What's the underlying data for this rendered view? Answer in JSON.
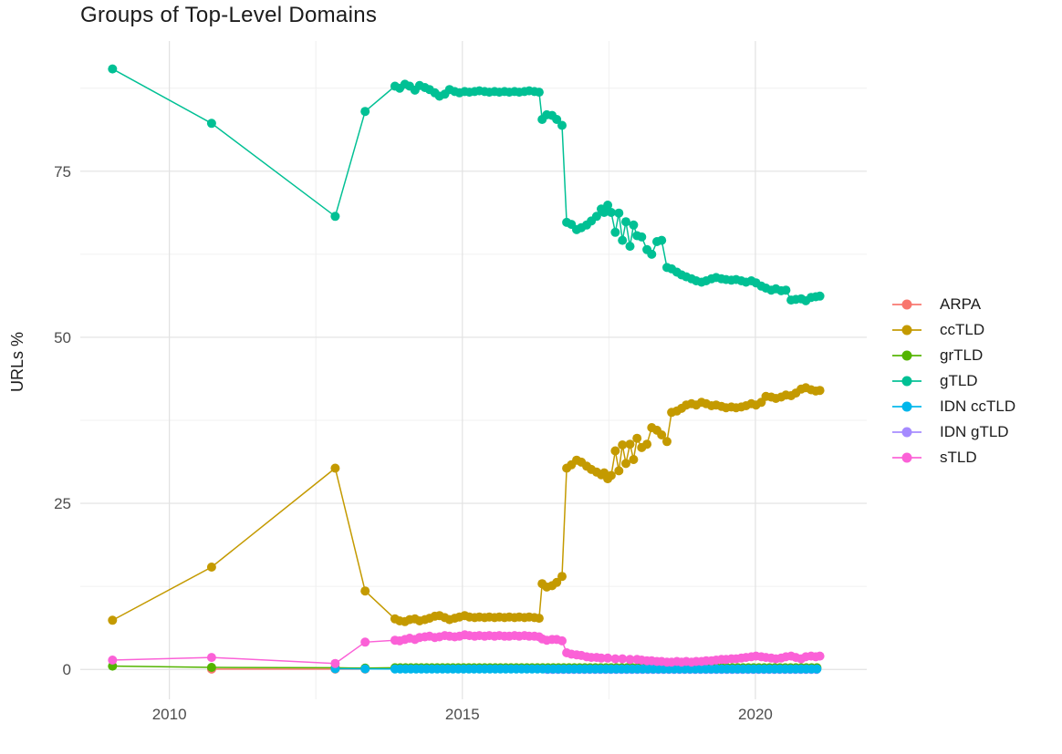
{
  "chart_data": {
    "type": "line",
    "title": "Groups of Top-Level Domains",
    "xlabel": "",
    "ylabel": "URLs %",
    "xlim": [
      2008.48,
      2021.9
    ],
    "ylim": [
      -4.5,
      94.6
    ],
    "x_ticks": [
      2010,
      2015,
      2020
    ],
    "y_ticks": [
      0,
      25,
      50,
      75
    ],
    "x_minor": [
      2012.5,
      2017.5
    ],
    "y_minor": [
      12.5,
      37.5,
      62.5,
      87.5
    ],
    "grid": true,
    "legend_position": "right",
    "draw_order": [
      "ARPA",
      "IDN gTLD",
      "grTLD",
      "IDN ccTLD",
      "gTLD",
      "ccTLD",
      "sTLD"
    ],
    "series": [
      {
        "name": "ARPA",
        "color": "#F8766D",
        "points": [
          [
            2010.72,
            0.05
          ],
          [
            2012.83,
            0.05
          ],
          [
            2013.34,
            0.05
          ]
        ]
      },
      {
        "name": "ccTLD",
        "color": "#C49A00",
        "points": [
          [
            2009.03,
            7.4
          ],
          [
            2010.72,
            15.4
          ],
          [
            2012.83,
            30.3
          ],
          [
            2013.34,
            11.8
          ],
          [
            2013.85,
            7.6
          ],
          [
            2013.93,
            7.3
          ],
          [
            2014.02,
            7.2
          ],
          [
            2014.1,
            7.5
          ],
          [
            2014.19,
            7.6
          ],
          [
            2014.27,
            7.3
          ],
          [
            2014.36,
            7.5
          ],
          [
            2014.44,
            7.7
          ],
          [
            2014.53,
            8.0
          ],
          [
            2014.61,
            8.1
          ],
          [
            2014.7,
            7.8
          ],
          [
            2014.78,
            7.5
          ],
          [
            2014.87,
            7.7
          ],
          [
            2014.95,
            7.9
          ],
          [
            2015.04,
            8.1
          ],
          [
            2015.12,
            7.9
          ],
          [
            2015.21,
            7.8
          ],
          [
            2015.29,
            7.9
          ],
          [
            2015.38,
            7.8
          ],
          [
            2015.46,
            7.9
          ],
          [
            2015.55,
            7.8
          ],
          [
            2015.63,
            7.9
          ],
          [
            2015.72,
            7.8
          ],
          [
            2015.8,
            7.9
          ],
          [
            2015.89,
            7.8
          ],
          [
            2015.97,
            7.9
          ],
          [
            2016.06,
            7.8
          ],
          [
            2016.14,
            7.9
          ],
          [
            2016.23,
            7.8
          ],
          [
            2016.31,
            7.7
          ],
          [
            2016.36,
            12.9
          ],
          [
            2016.44,
            12.4
          ],
          [
            2016.53,
            12.6
          ],
          [
            2016.61,
            13.1
          ],
          [
            2016.7,
            14.0
          ],
          [
            2016.78,
            30.3
          ],
          [
            2016.86,
            30.8
          ],
          [
            2016.95,
            31.5
          ],
          [
            2017.03,
            31.2
          ],
          [
            2017.12,
            30.6
          ],
          [
            2017.2,
            30.1
          ],
          [
            2017.29,
            29.7
          ],
          [
            2017.37,
            29.3
          ],
          [
            2017.42,
            29.6
          ],
          [
            2017.48,
            28.7
          ],
          [
            2017.54,
            29.2
          ],
          [
            2017.61,
            32.9
          ],
          [
            2017.67,
            29.9
          ],
          [
            2017.73,
            33.8
          ],
          [
            2017.79,
            31.0
          ],
          [
            2017.86,
            33.9
          ],
          [
            2017.92,
            31.6
          ],
          [
            2017.98,
            34.8
          ],
          [
            2018.06,
            33.4
          ],
          [
            2018.15,
            33.9
          ],
          [
            2018.23,
            36.4
          ],
          [
            2018.32,
            36.0
          ],
          [
            2018.4,
            35.3
          ],
          [
            2018.49,
            34.3
          ],
          [
            2018.57,
            38.7
          ],
          [
            2018.66,
            38.9
          ],
          [
            2018.74,
            39.3
          ],
          [
            2018.82,
            39.8
          ],
          [
            2018.91,
            40.0
          ],
          [
            2018.99,
            39.8
          ],
          [
            2019.08,
            40.2
          ],
          [
            2019.16,
            40.0
          ],
          [
            2019.25,
            39.7
          ],
          [
            2019.33,
            39.8
          ],
          [
            2019.42,
            39.6
          ],
          [
            2019.5,
            39.4
          ],
          [
            2019.59,
            39.5
          ],
          [
            2019.67,
            39.4
          ],
          [
            2019.76,
            39.5
          ],
          [
            2019.84,
            39.7
          ],
          [
            2019.93,
            40.0
          ],
          [
            2020.01,
            39.8
          ],
          [
            2020.1,
            40.2
          ],
          [
            2020.18,
            41.1
          ],
          [
            2020.27,
            41.0
          ],
          [
            2020.35,
            40.8
          ],
          [
            2020.44,
            41.0
          ],
          [
            2020.52,
            41.3
          ],
          [
            2020.61,
            41.2
          ],
          [
            2020.69,
            41.6
          ],
          [
            2020.78,
            42.2
          ],
          [
            2020.86,
            42.4
          ],
          [
            2020.95,
            42.1
          ],
          [
            2021.03,
            41.9
          ],
          [
            2021.1,
            42.0
          ]
        ]
      },
      {
        "name": "grTLD",
        "color": "#53B400",
        "points": [
          [
            2009.03,
            0.5
          ],
          [
            2010.72,
            0.3
          ],
          [
            2012.83,
            0.25
          ],
          [
            2013.34,
            0.2
          ]
        ],
        "span": {
          "from": 2013.85,
          "to": 2021.1,
          "step": 0.09,
          "value": 0.25
        }
      },
      {
        "name": "gTLD",
        "color": "#00C094",
        "points": [
          [
            2009.03,
            90.4
          ],
          [
            2010.72,
            82.2
          ],
          [
            2012.83,
            68.2
          ],
          [
            2013.34,
            84.0
          ],
          [
            2013.85,
            87.8
          ],
          [
            2013.93,
            87.5
          ],
          [
            2014.02,
            88.1
          ],
          [
            2014.1,
            87.8
          ],
          [
            2014.19,
            87.2
          ],
          [
            2014.27,
            87.9
          ],
          [
            2014.36,
            87.6
          ],
          [
            2014.44,
            87.3
          ],
          [
            2014.53,
            86.8
          ],
          [
            2014.61,
            86.3
          ],
          [
            2014.7,
            86.6
          ],
          [
            2014.78,
            87.3
          ],
          [
            2014.87,
            87.0
          ],
          [
            2014.95,
            86.8
          ],
          [
            2015.04,
            87.0
          ],
          [
            2015.12,
            86.9
          ],
          [
            2015.21,
            87.0
          ],
          [
            2015.29,
            87.1
          ],
          [
            2015.38,
            87.0
          ],
          [
            2015.46,
            86.9
          ],
          [
            2015.55,
            87.0
          ],
          [
            2015.63,
            86.9
          ],
          [
            2015.72,
            87.0
          ],
          [
            2015.8,
            86.9
          ],
          [
            2015.89,
            87.0
          ],
          [
            2015.97,
            86.9
          ],
          [
            2016.06,
            87.0
          ],
          [
            2016.14,
            87.1
          ],
          [
            2016.23,
            87.0
          ],
          [
            2016.31,
            86.9
          ],
          [
            2016.36,
            82.8
          ],
          [
            2016.44,
            83.5
          ],
          [
            2016.53,
            83.4
          ],
          [
            2016.61,
            82.8
          ],
          [
            2016.7,
            81.9
          ],
          [
            2016.78,
            67.3
          ],
          [
            2016.86,
            67.0
          ],
          [
            2016.95,
            66.2
          ],
          [
            2017.03,
            66.5
          ],
          [
            2017.12,
            66.9
          ],
          [
            2017.2,
            67.5
          ],
          [
            2017.29,
            68.2
          ],
          [
            2017.37,
            69.3
          ],
          [
            2017.42,
            68.8
          ],
          [
            2017.48,
            69.9
          ],
          [
            2017.54,
            68.8
          ],
          [
            2017.61,
            65.8
          ],
          [
            2017.67,
            68.7
          ],
          [
            2017.73,
            64.6
          ],
          [
            2017.79,
            67.4
          ],
          [
            2017.86,
            63.7
          ],
          [
            2017.92,
            66.9
          ],
          [
            2017.98,
            65.3
          ],
          [
            2018.06,
            65.1
          ],
          [
            2018.15,
            63.2
          ],
          [
            2018.23,
            62.5
          ],
          [
            2018.32,
            64.4
          ],
          [
            2018.4,
            64.6
          ],
          [
            2018.49,
            60.5
          ],
          [
            2018.57,
            60.3
          ],
          [
            2018.66,
            59.8
          ],
          [
            2018.74,
            59.4
          ],
          [
            2018.82,
            59.1
          ],
          [
            2018.91,
            58.8
          ],
          [
            2018.99,
            58.5
          ],
          [
            2019.08,
            58.3
          ],
          [
            2019.16,
            58.5
          ],
          [
            2019.25,
            58.8
          ],
          [
            2019.33,
            59.0
          ],
          [
            2019.42,
            58.8
          ],
          [
            2019.5,
            58.7
          ],
          [
            2019.59,
            58.6
          ],
          [
            2019.67,
            58.7
          ],
          [
            2019.76,
            58.5
          ],
          [
            2019.84,
            58.3
          ],
          [
            2019.93,
            58.5
          ],
          [
            2020.01,
            58.2
          ],
          [
            2020.1,
            57.7
          ],
          [
            2020.18,
            57.4
          ],
          [
            2020.27,
            57.1
          ],
          [
            2020.35,
            57.3
          ],
          [
            2020.44,
            57.0
          ],
          [
            2020.52,
            57.1
          ],
          [
            2020.61,
            55.6
          ],
          [
            2020.69,
            55.7
          ],
          [
            2020.78,
            55.8
          ],
          [
            2020.86,
            55.5
          ],
          [
            2020.95,
            56.0
          ],
          [
            2021.03,
            56.1
          ],
          [
            2021.1,
            56.2
          ]
        ]
      },
      {
        "name": "IDN ccTLD",
        "color": "#00B6EB",
        "points": [
          [
            2012.83,
            0.1
          ],
          [
            2013.34,
            0.08
          ]
        ],
        "span": {
          "from": 2013.85,
          "to": 2021.1,
          "step": 0.09,
          "value": 0.07
        }
      },
      {
        "name": "IDN gTLD",
        "color": "#A58AFF",
        "points": [],
        "span": {
          "from": 2016.45,
          "to": 2021.1,
          "step": 0.09,
          "value": 0.0
        }
      },
      {
        "name": "sTLD",
        "color": "#FB61D7",
        "points": [
          [
            2009.03,
            1.4
          ],
          [
            2010.72,
            1.8
          ],
          [
            2012.83,
            0.9
          ],
          [
            2013.34,
            4.1
          ],
          [
            2013.85,
            4.4
          ],
          [
            2013.93,
            4.3
          ],
          [
            2014.02,
            4.5
          ],
          [
            2014.1,
            4.7
          ],
          [
            2014.19,
            4.5
          ],
          [
            2014.27,
            4.8
          ],
          [
            2014.36,
            4.9
          ],
          [
            2014.44,
            5.0
          ],
          [
            2014.53,
            4.8
          ],
          [
            2014.61,
            4.9
          ],
          [
            2014.7,
            5.1
          ],
          [
            2014.78,
            5.0
          ],
          [
            2014.87,
            4.9
          ],
          [
            2014.95,
            5.0
          ],
          [
            2015.04,
            5.2
          ],
          [
            2015.12,
            5.1
          ],
          [
            2015.21,
            5.0
          ],
          [
            2015.29,
            5.1
          ],
          [
            2015.38,
            5.0
          ],
          [
            2015.46,
            5.1
          ],
          [
            2015.55,
            5.0
          ],
          [
            2015.63,
            5.1
          ],
          [
            2015.72,
            5.0
          ],
          [
            2015.8,
            5.0
          ],
          [
            2015.89,
            5.1
          ],
          [
            2015.97,
            5.0
          ],
          [
            2016.06,
            5.1
          ],
          [
            2016.14,
            5.0
          ],
          [
            2016.23,
            5.0
          ],
          [
            2016.31,
            4.9
          ],
          [
            2016.36,
            4.6
          ],
          [
            2016.44,
            4.4
          ],
          [
            2016.53,
            4.5
          ],
          [
            2016.61,
            4.5
          ],
          [
            2016.7,
            4.3
          ],
          [
            2016.78,
            2.5
          ],
          [
            2016.86,
            2.3
          ],
          [
            2016.95,
            2.2
          ],
          [
            2017.03,
            2.1
          ],
          [
            2017.12,
            1.9
          ],
          [
            2017.2,
            1.8
          ],
          [
            2017.29,
            1.8
          ],
          [
            2017.37,
            1.7
          ],
          [
            2017.48,
            1.7
          ],
          [
            2017.61,
            1.6
          ],
          [
            2017.73,
            1.6
          ],
          [
            2017.86,
            1.5
          ],
          [
            2017.98,
            1.5
          ],
          [
            2018.06,
            1.4
          ],
          [
            2018.15,
            1.3
          ],
          [
            2018.23,
            1.3
          ],
          [
            2018.32,
            1.2
          ],
          [
            2018.4,
            1.2
          ],
          [
            2018.49,
            1.1
          ],
          [
            2018.57,
            1.1
          ],
          [
            2018.66,
            1.2
          ],
          [
            2018.74,
            1.1
          ],
          [
            2018.82,
            1.2
          ],
          [
            2018.91,
            1.1
          ],
          [
            2018.99,
            1.2
          ],
          [
            2019.08,
            1.2
          ],
          [
            2019.16,
            1.3
          ],
          [
            2019.25,
            1.3
          ],
          [
            2019.33,
            1.4
          ],
          [
            2019.42,
            1.5
          ],
          [
            2019.5,
            1.5
          ],
          [
            2019.59,
            1.6
          ],
          [
            2019.67,
            1.6
          ],
          [
            2019.76,
            1.7
          ],
          [
            2019.84,
            1.8
          ],
          [
            2019.93,
            1.9
          ],
          [
            2020.01,
            2.0
          ],
          [
            2020.1,
            1.9
          ],
          [
            2020.18,
            1.8
          ],
          [
            2020.27,
            1.7
          ],
          [
            2020.35,
            1.6
          ],
          [
            2020.44,
            1.7
          ],
          [
            2020.52,
            1.9
          ],
          [
            2020.61,
            2.0
          ],
          [
            2020.69,
            1.8
          ],
          [
            2020.78,
            1.6
          ],
          [
            2020.86,
            1.9
          ],
          [
            2020.95,
            2.0
          ],
          [
            2021.03,
            1.9
          ],
          [
            2021.1,
            2.0
          ]
        ]
      }
    ],
    "style": {
      "grid_major_color": "#E2E2E2",
      "grid_minor_color": "#F0F0F0",
      "tick_label_color": "#4D4D4D",
      "background": "#FFFFFF"
    }
  }
}
